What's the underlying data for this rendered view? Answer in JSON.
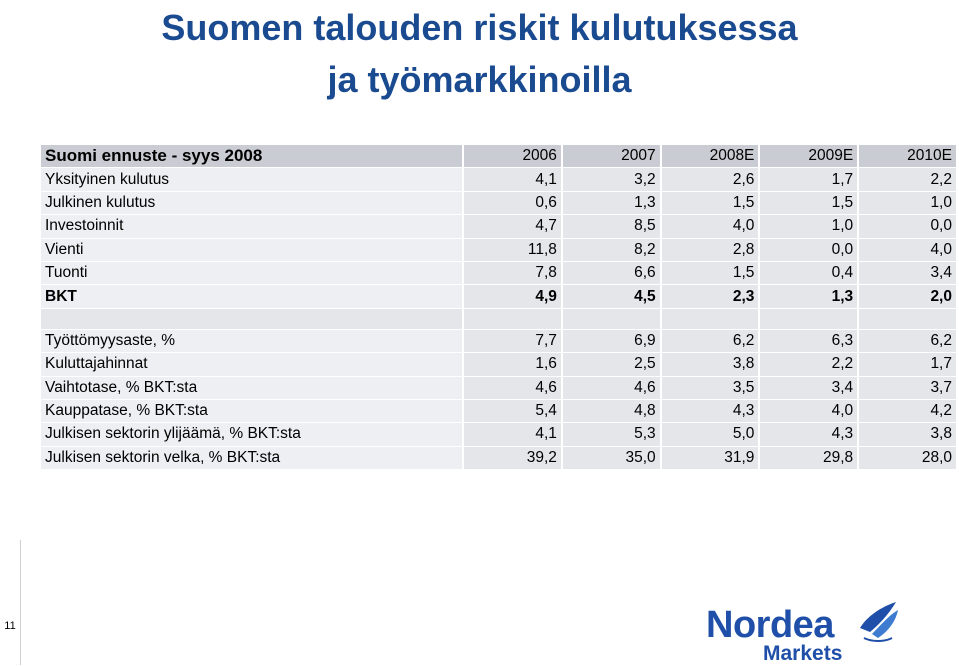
{
  "title": {
    "line1": "Suomen talouden riskit kulutuksessa",
    "line2": "ja työmarkkinoilla"
  },
  "table": {
    "header": {
      "label": "Suomi ennuste - syys 2008",
      "years": [
        "2006",
        "2007",
        "2008E",
        "2009E",
        "2010E"
      ]
    },
    "rows1": [
      {
        "label": "Yksityinen kulutus",
        "values": [
          "4,1",
          "3,2",
          "2,6",
          "1,7",
          "2,2"
        ]
      },
      {
        "label": "Julkinen kulutus",
        "values": [
          "0,6",
          "1,3",
          "1,5",
          "1,5",
          "1,0"
        ]
      },
      {
        "label": "Investoinnit",
        "values": [
          "4,7",
          "8,5",
          "4,0",
          "1,0",
          "0,0"
        ]
      },
      {
        "label": "Vienti",
        "values": [
          "11,8",
          "8,2",
          "2,8",
          "0,0",
          "4,0"
        ]
      },
      {
        "label": "Tuonti",
        "values": [
          "7,8",
          "6,6",
          "1,5",
          "0,4",
          "3,4"
        ]
      },
      {
        "label": "BKT",
        "values": [
          "4,9",
          "4,5",
          "2,3",
          "1,3",
          "2,0"
        ],
        "bold": true
      }
    ],
    "rows2": [
      {
        "label": "Työttömyysaste, %",
        "values": [
          "7,7",
          "6,9",
          "6,2",
          "6,3",
          "6,2"
        ]
      },
      {
        "label": "Kuluttajahinnat",
        "values": [
          "1,6",
          "2,5",
          "3,8",
          "2,2",
          "1,7"
        ]
      },
      {
        "label": "Vaihtotase, % BKT:sta",
        "values": [
          "4,6",
          "4,6",
          "3,5",
          "3,4",
          "3,7"
        ]
      },
      {
        "label": "Kauppatase, % BKT:sta",
        "values": [
          "5,4",
          "4,8",
          "4,3",
          "4,0",
          "4,2"
        ]
      },
      {
        "label": "Julkisen sektorin ylijäämä, % BKT:sta",
        "values": [
          "4,1",
          "5,3",
          "5,0",
          "4,3",
          "3,8"
        ]
      },
      {
        "label": "Julkisen sektorin velka, % BKT:sta",
        "values": [
          "39,2",
          "35,0",
          "31,9",
          "29,8",
          "28,0"
        ]
      }
    ]
  },
  "page_number": "11",
  "logo": {
    "name": "Nordea",
    "sub": "Markets",
    "icon": "sailboat-icon",
    "color": "#1f4fa8"
  }
}
